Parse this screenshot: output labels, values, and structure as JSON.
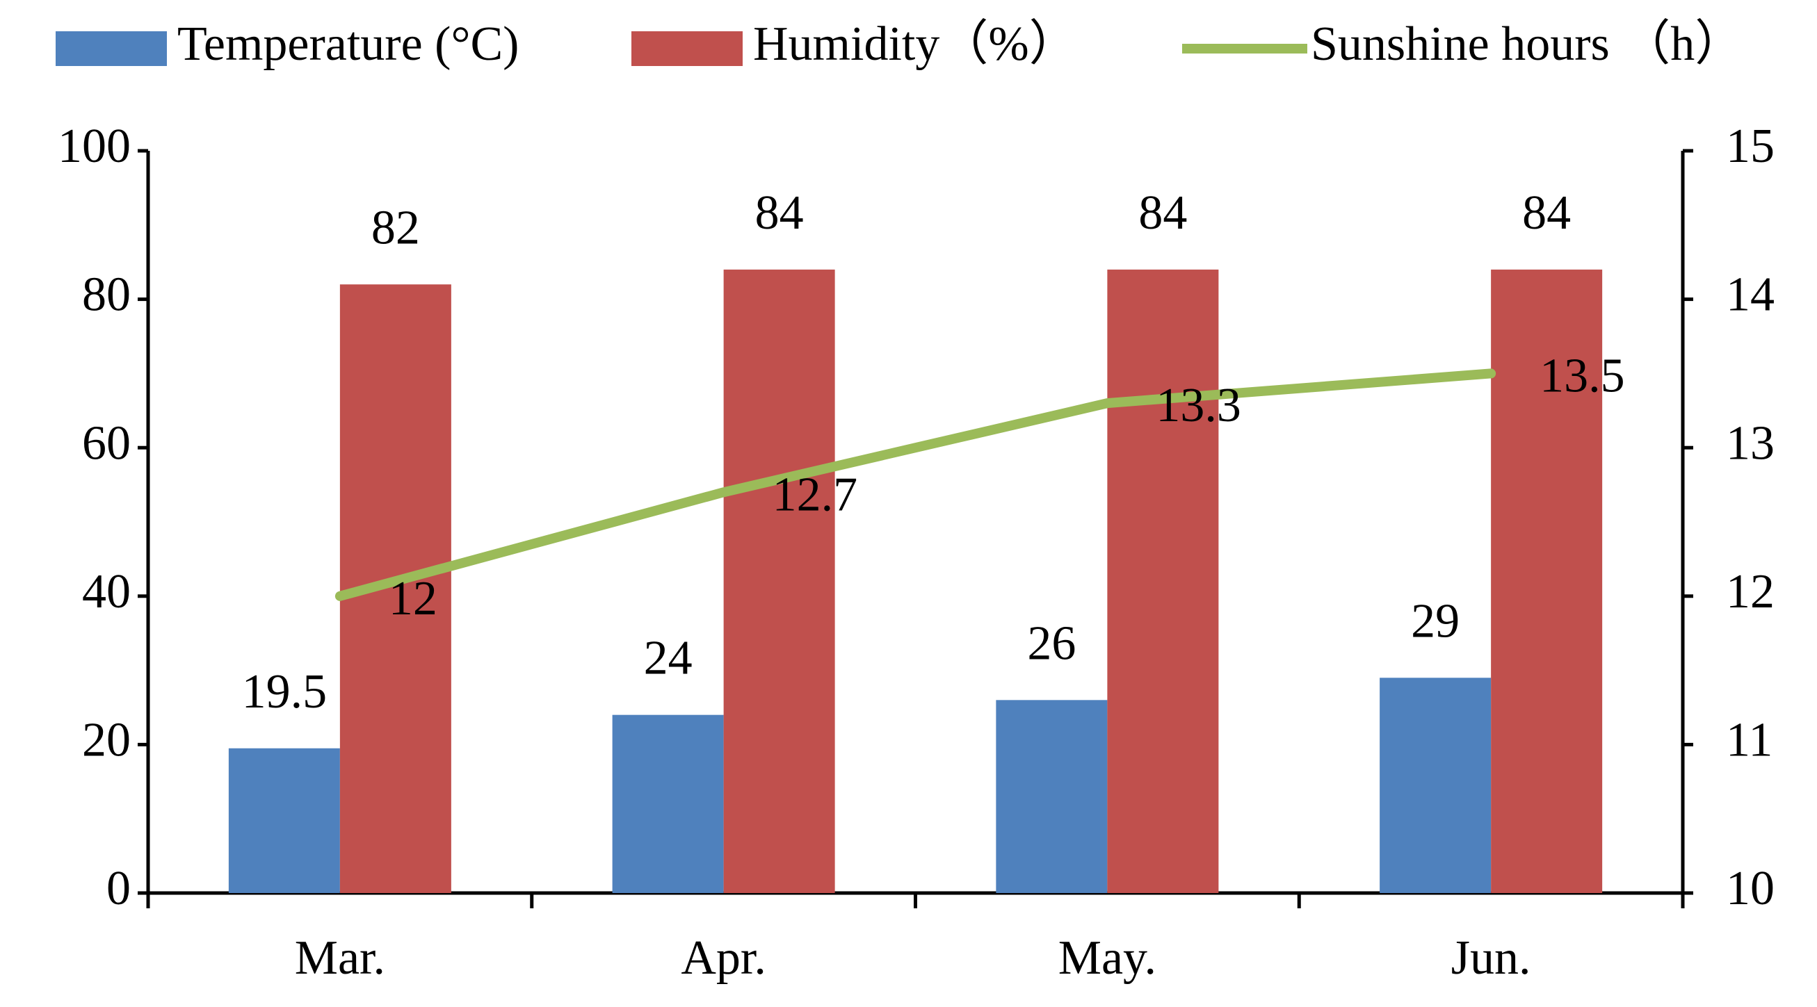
{
  "chart_data": {
    "type": "bar",
    "categories": [
      "Mar.",
      "Apr.",
      "May.",
      "Jun."
    ],
    "series": [
      {
        "name": "Temperature (°C)",
        "type": "bar",
        "color": "#4f81bd",
        "values": [
          19.5,
          24,
          26,
          29
        ]
      },
      {
        "name": "Humidity（%）",
        "type": "bar",
        "color": "#c0504d",
        "values": [
          82,
          84,
          84,
          84
        ]
      },
      {
        "name": "Sunshine hours （h）",
        "type": "line",
        "axis": "y2",
        "color": "#9bbb59",
        "values": [
          12,
          12.7,
          13.3,
          13.5
        ]
      }
    ],
    "ylim": [
      0,
      100
    ],
    "yticks": [
      0,
      20,
      40,
      60,
      80,
      100
    ],
    "y2lim": [
      10,
      15
    ],
    "y2ticks": [
      10,
      11,
      12,
      13,
      14,
      15
    ],
    "legend": "top",
    "grid": false
  }
}
